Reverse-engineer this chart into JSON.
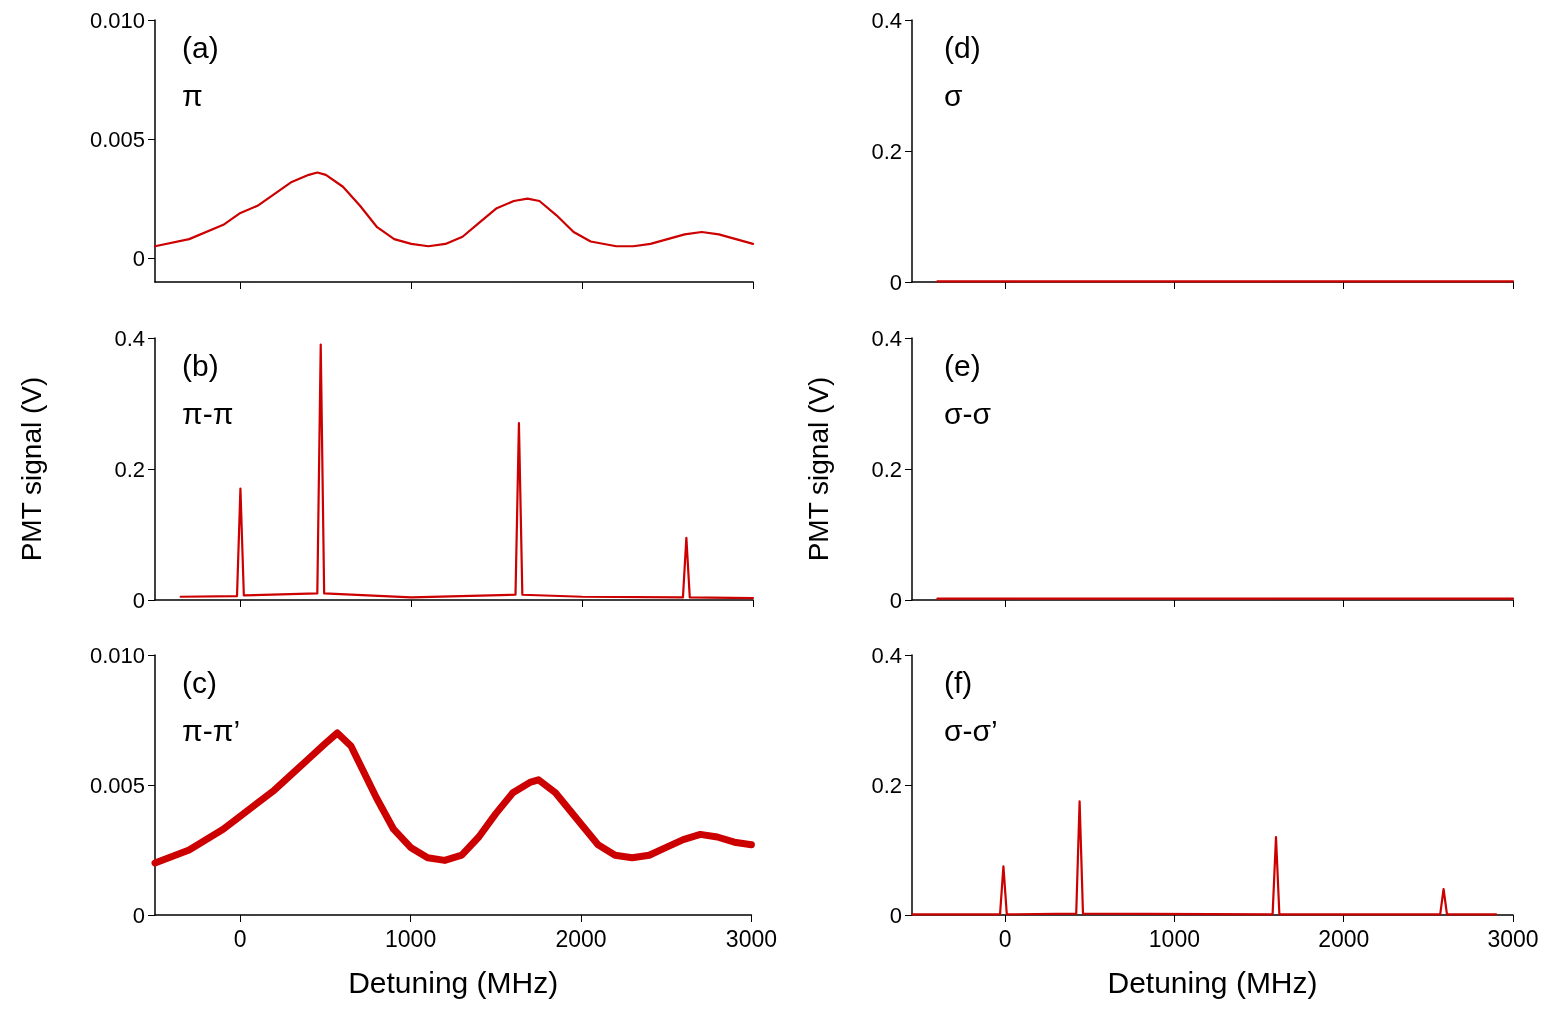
{
  "chart_data": [
    {
      "type": "line",
      "annotations": [
        "(a)",
        "π"
      ],
      "xlim": [
        -500,
        3000
      ],
      "xticks": [
        0,
        1000,
        2000,
        3000
      ],
      "ylim": [
        -0.001,
        0.01
      ],
      "yticks": [
        0,
        0.005,
        {
          "value": 0.01,
          "label": "0.010"
        }
      ],
      "tick_labels": "y",
      "x": [
        -500,
        -300,
        -100,
        0,
        100,
        200,
        300,
        400,
        450,
        500,
        600,
        700,
        800,
        900,
        1000,
        1100,
        1200,
        1300,
        1400,
        1500,
        1600,
        1680,
        1750,
        1850,
        1950,
        2050,
        2200,
        2300,
        2400,
        2500,
        2600,
        2700,
        2800,
        2900,
        3000
      ],
      "series": [
        {
          "color": "#cc0000",
          "values": [
            0.0005,
            0.0008,
            0.0014,
            0.0019,
            0.0022,
            0.0027,
            0.0032,
            0.0035,
            0.0036,
            0.0035,
            0.003,
            0.0022,
            0.0013,
            0.0008,
            0.0006,
            0.0005,
            0.0006,
            0.0009,
            0.0015,
            0.0021,
            0.0024,
            0.0025,
            0.0024,
            0.0018,
            0.0011,
            0.0007,
            0.0005,
            0.0005,
            0.0006,
            0.0008,
            0.001,
            0.0011,
            0.001,
            0.0008,
            0.0006
          ]
        }
      ]
    },
    {
      "type": "line",
      "annotations": [
        "(b)",
        "π-π"
      ],
      "ylabel": "PMT signal (V)",
      "xlim": [
        -500,
        3000
      ],
      "xticks": [
        0,
        1000,
        2000,
        3000
      ],
      "ylim": [
        0,
        0.4
      ],
      "yticks": [
        0,
        0.2,
        0.4
      ],
      "tick_labels": "y",
      "x": [
        -350,
        -20,
        0,
        20,
        450,
        470,
        490,
        1000,
        1610,
        1630,
        1650,
        2000,
        2590,
        2610,
        2630,
        3000
      ],
      "series": [
        {
          "color": "#cc0000",
          "values": [
            0.005,
            0.006,
            0.17,
            0.007,
            0.01,
            0.39,
            0.01,
            0.004,
            0.008,
            0.27,
            0.008,
            0.005,
            0.004,
            0.095,
            0.004,
            0.003
          ]
        }
      ]
    },
    {
      "type": "line",
      "annotations": [
        "(c)",
        "π-π’"
      ],
      "xlabel": "Detuning (MHz)",
      "xlim": [
        -500,
        3000
      ],
      "xticks": [
        0,
        1000,
        2000,
        3000
      ],
      "ylim": [
        0,
        0.01
      ],
      "yticks": [
        0,
        0.005,
        {
          "value": 0.01,
          "label": "0.010"
        }
      ],
      "x": [
        -500,
        -300,
        -100,
        0,
        200,
        400,
        500,
        570,
        650,
        800,
        900,
        1000,
        1100,
        1200,
        1300,
        1400,
        1500,
        1600,
        1700,
        1750,
        1850,
        2000,
        2100,
        2200,
        2300,
        2400,
        2500,
        2600,
        2700,
        2800,
        2900,
        3000
      ],
      "series": [
        {
          "color": "#cc0000",
          "values": [
            0.002,
            0.0025,
            0.0033,
            0.0038,
            0.0048,
            0.006,
            0.0066,
            0.007,
            0.0065,
            0.0045,
            0.0033,
            0.0026,
            0.0022,
            0.0021,
            0.0023,
            0.003,
            0.0039,
            0.0047,
            0.0051,
            0.0052,
            0.0047,
            0.0035,
            0.0027,
            0.0023,
            0.0022,
            0.0023,
            0.0026,
            0.0029,
            0.0031,
            0.003,
            0.0028,
            0.0027
          ]
        }
      ]
    },
    {
      "type": "line",
      "annotations": [
        "(d)",
        "σ"
      ],
      "xlim": [
        -550,
        3000
      ],
      "xticks": [
        0,
        1000,
        2000,
        3000
      ],
      "ylim": [
        0,
        0.4
      ],
      "yticks": [
        0,
        0.2,
        0.4
      ],
      "tick_labels": "y",
      "x": [
        -400,
        3000
      ],
      "series": [
        {
          "color": "#cc0000",
          "values": [
            0.001,
            0.001
          ]
        }
      ]
    },
    {
      "type": "line",
      "annotations": [
        "(e)",
        "σ-σ"
      ],
      "ylabel": "PMT signal (V)",
      "xlim": [
        -550,
        3000
      ],
      "xticks": [
        0,
        1000,
        2000,
        3000
      ],
      "ylim": [
        0,
        0.4
      ],
      "yticks": [
        0,
        0.2,
        0.4
      ],
      "tick_labels": "y",
      "x": [
        -400,
        3000
      ],
      "series": [
        {
          "color": "#cc0000",
          "values": [
            0.002,
            0.002
          ]
        }
      ]
    },
    {
      "type": "line",
      "annotations": [
        "(f)",
        "σ-σ’"
      ],
      "xlabel": "Detuning (MHz)",
      "xlim": [
        -550,
        3000
      ],
      "xticks": [
        0,
        1000,
        2000,
        3000
      ],
      "ylim": [
        0,
        0.4
      ],
      "yticks": [
        0,
        0.2,
        0.4
      ],
      "x": [
        -550,
        -30,
        -10,
        10,
        420,
        440,
        460,
        1580,
        1600,
        1620,
        2570,
        2590,
        2610,
        2900
      ],
      "series": [
        {
          "color": "#cc0000",
          "values": [
            0.001,
            0.001,
            0.075,
            0.001,
            0.002,
            0.175,
            0.002,
            0.001,
            0.12,
            0.001,
            0.001,
            0.04,
            0.001,
            0.001
          ]
        }
      ]
    }
  ]
}
